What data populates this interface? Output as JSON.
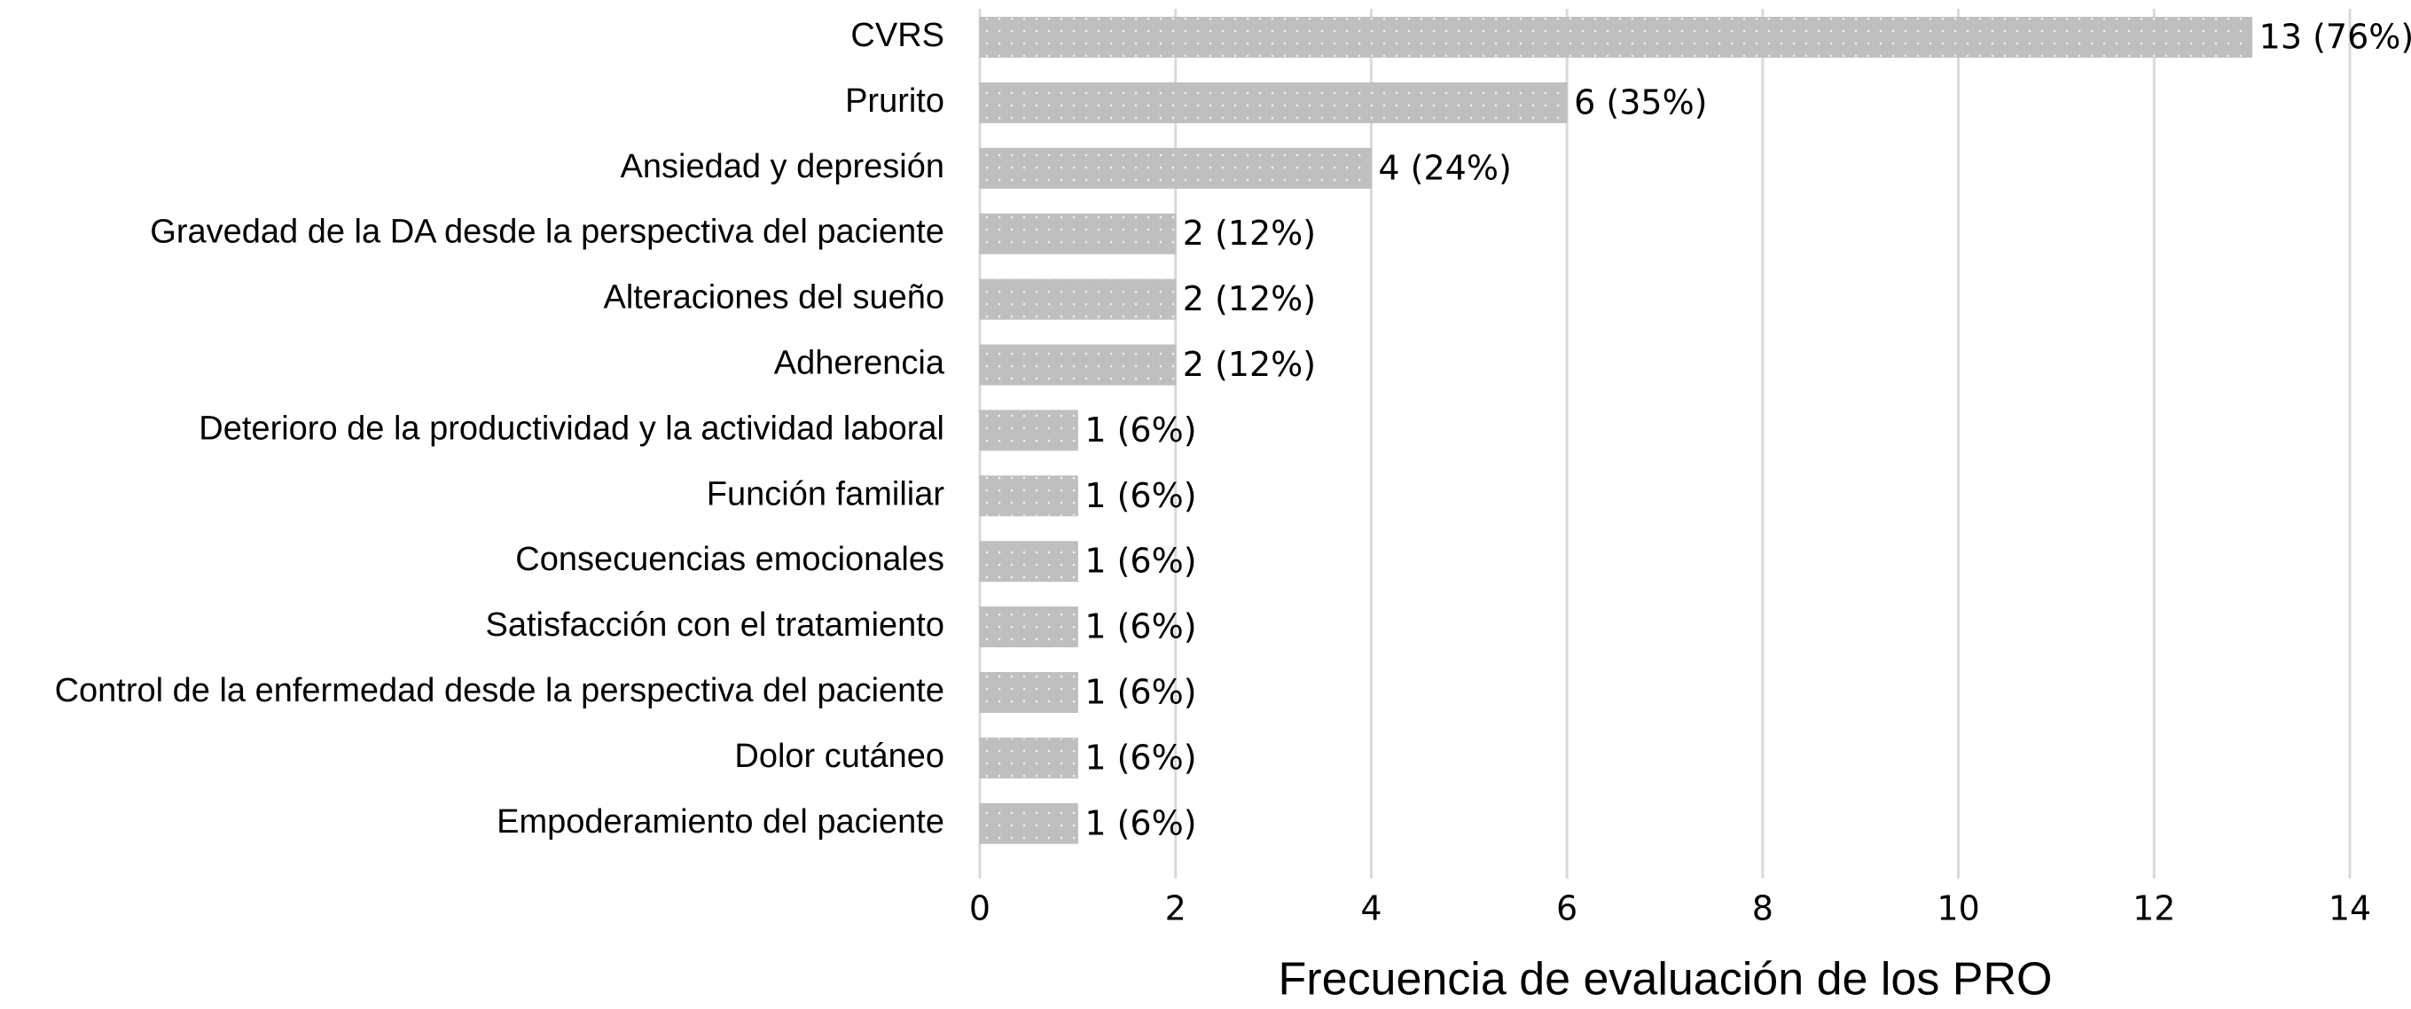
{
  "chart_data": {
    "type": "hbar",
    "x_label": "Frecuencia de evaluación de los PRO",
    "categories": [
      "CVRS",
      "Prurito",
      "Ansiedad y depresión",
      "Gravedad de la DA desde la perspectiva del paciente",
      "Alteraciones del sueño",
      "Adherencia",
      "Deterioro de la productividad y la actividad laboral",
      "Función familiar",
      "Consecuencias emocionales",
      "Satisfacción con el tratamiento",
      "Control de la enfermedad desde la perspectiva del paciente",
      "Dolor cutáneo",
      "Empoderamiento del paciente"
    ],
    "values": [
      13,
      6,
      4,
      2,
      2,
      2,
      1,
      1,
      1,
      1,
      1,
      1,
      1
    ],
    "value_labels": [
      "13 (76%)",
      "6 (35%)",
      "4 (24%)",
      "2 (12%)",
      "2 (12%)",
      "2 (12%)",
      "1 (6%)",
      "1 (6%)",
      "1 (6%)",
      "1 (6%)",
      "1 (6%)",
      "1 (6%)",
      "1 (6%)"
    ],
    "color": "#bfbfbf",
    "xlim": [
      0,
      14
    ],
    "xticks": [
      0,
      2,
      4,
      6,
      8,
      10,
      12,
      14
    ],
    "grid": true
  }
}
